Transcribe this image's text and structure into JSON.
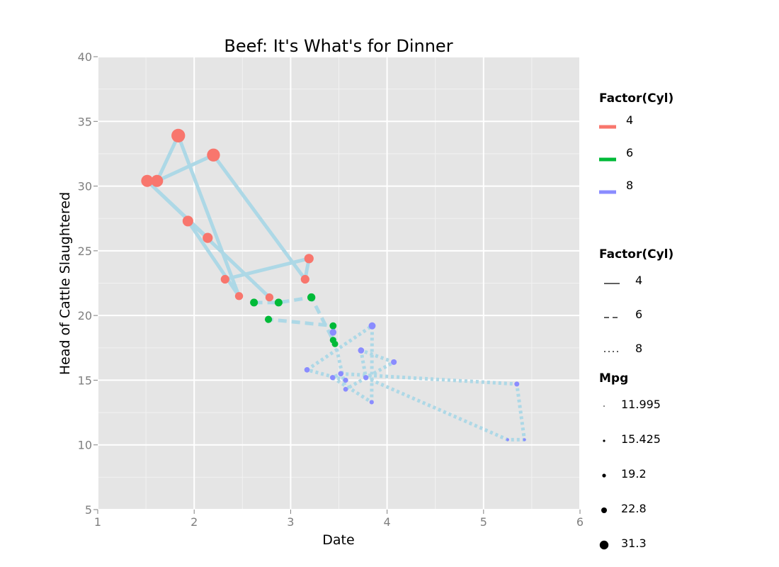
{
  "chart_data": {
    "type": "scatter",
    "title": "Beef: It's What's for Dinner",
    "xlabel": "Date",
    "ylabel": "Head of Cattle Slaughtered",
    "xlim": [
      1,
      6
    ],
    "ylim": [
      5,
      40
    ],
    "x_ticks": [
      1,
      2,
      3,
      4,
      5,
      6
    ],
    "y_ticks": [
      5,
      10,
      15,
      20,
      25,
      30,
      35,
      40
    ],
    "grid": true,
    "legend_position": "right",
    "series": [
      {
        "name": "4",
        "color": "#f8766d",
        "linetype": "solid",
        "points": [
          {
            "x": 2.32,
            "y": 22.8
          },
          {
            "x": 3.19,
            "y": 24.4
          },
          {
            "x": 3.15,
            "y": 22.8
          },
          {
            "x": 2.2,
            "y": 32.4
          },
          {
            "x": 1.615,
            "y": 30.4
          },
          {
            "x": 1.835,
            "y": 33.9
          },
          {
            "x": 2.465,
            "y": 21.5
          },
          {
            "x": 1.935,
            "y": 27.3
          },
          {
            "x": 2.14,
            "y": 26.0
          },
          {
            "x": 1.513,
            "y": 30.4
          },
          {
            "x": 2.78,
            "y": 21.4
          }
        ]
      },
      {
        "name": "6",
        "color": "#00ba38",
        "linetype": "dashed",
        "points": [
          {
            "x": 2.62,
            "y": 21.0
          },
          {
            "x": 2.875,
            "y": 21.0
          },
          {
            "x": 3.215,
            "y": 21.4
          },
          {
            "x": 3.44,
            "y": 18.1
          },
          {
            "x": 3.46,
            "y": 17.8
          },
          {
            "x": 3.44,
            "y": 19.2
          },
          {
            "x": 2.77,
            "y": 19.7
          }
        ]
      },
      {
        "name": "8",
        "color": "#8a8cff",
        "linetype": "dotted",
        "points": [
          {
            "x": 3.44,
            "y": 18.7
          },
          {
            "x": 3.57,
            "y": 14.3
          },
          {
            "x": 4.07,
            "y": 16.4
          },
          {
            "x": 3.73,
            "y": 17.3
          },
          {
            "x": 3.78,
            "y": 15.2
          },
          {
            "x": 5.25,
            "y": 10.4
          },
          {
            "x": 5.424,
            "y": 10.4
          },
          {
            "x": 5.345,
            "y": 14.7
          },
          {
            "x": 3.52,
            "y": 15.5
          },
          {
            "x": 3.435,
            "y": 15.2
          },
          {
            "x": 3.84,
            "y": 13.3
          },
          {
            "x": 3.845,
            "y": 19.2
          },
          {
            "x": 3.17,
            "y": 15.8
          },
          {
            "x": 3.57,
            "y": 15.0
          }
        ]
      }
    ],
    "path_color": "#add8e6",
    "legends": [
      {
        "title": "Factor(Cyl)",
        "kind": "color",
        "entries": [
          "4",
          "6",
          "8"
        ]
      },
      {
        "title": "Factor(Cyl)",
        "kind": "linetype",
        "entries": [
          "4",
          "6",
          "8"
        ]
      },
      {
        "title": "Mpg",
        "kind": "size",
        "entries": [
          "11.995",
          "15.425",
          "19.2",
          "22.8",
          "31.3"
        ]
      }
    ]
  }
}
